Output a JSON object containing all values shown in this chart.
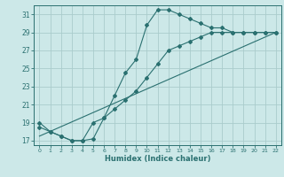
{
  "xlabel": "Humidex (Indice chaleur)",
  "bg_color": "#cce8e8",
  "grid_color": "#aacccc",
  "line_color": "#2a7070",
  "xlim": [
    -0.5,
    22.5
  ],
  "ylim": [
    16.5,
    32.0
  ],
  "yticks": [
    17,
    19,
    21,
    23,
    25,
    27,
    29,
    31
  ],
  "xticks": [
    0,
    1,
    2,
    3,
    4,
    5,
    6,
    7,
    8,
    9,
    10,
    11,
    12,
    13,
    14,
    15,
    16,
    17,
    18,
    19,
    20,
    21,
    22
  ],
  "line1_x": [
    0,
    1,
    2,
    3,
    4,
    5,
    6,
    7,
    8,
    9,
    10,
    11,
    12,
    13,
    14,
    15,
    16,
    17,
    18,
    19,
    20,
    21,
    22
  ],
  "line1_y": [
    19,
    18,
    17.5,
    17.0,
    17.0,
    17.2,
    19.5,
    22.0,
    24.5,
    26.0,
    29.8,
    31.5,
    31.5,
    31.0,
    30.5,
    30.0,
    29.5,
    29.5,
    29.0,
    29.0,
    29.0,
    29.0,
    29.0
  ],
  "line2_x": [
    0,
    1,
    2,
    3,
    4,
    5,
    6,
    7,
    8,
    9,
    10,
    11,
    12,
    13,
    14,
    15,
    16,
    17,
    18,
    19,
    20,
    21,
    22
  ],
  "line2_y": [
    18.5,
    18.0,
    17.5,
    17.0,
    17.0,
    19.0,
    19.5,
    20.5,
    21.5,
    22.5,
    24.0,
    25.5,
    27.0,
    27.5,
    28.0,
    28.5,
    29.0,
    29.0,
    29.0,
    29.0,
    29.0,
    29.0,
    29.0
  ],
  "line3_x": [
    0,
    22
  ],
  "line3_y": [
    17.5,
    29.0
  ]
}
